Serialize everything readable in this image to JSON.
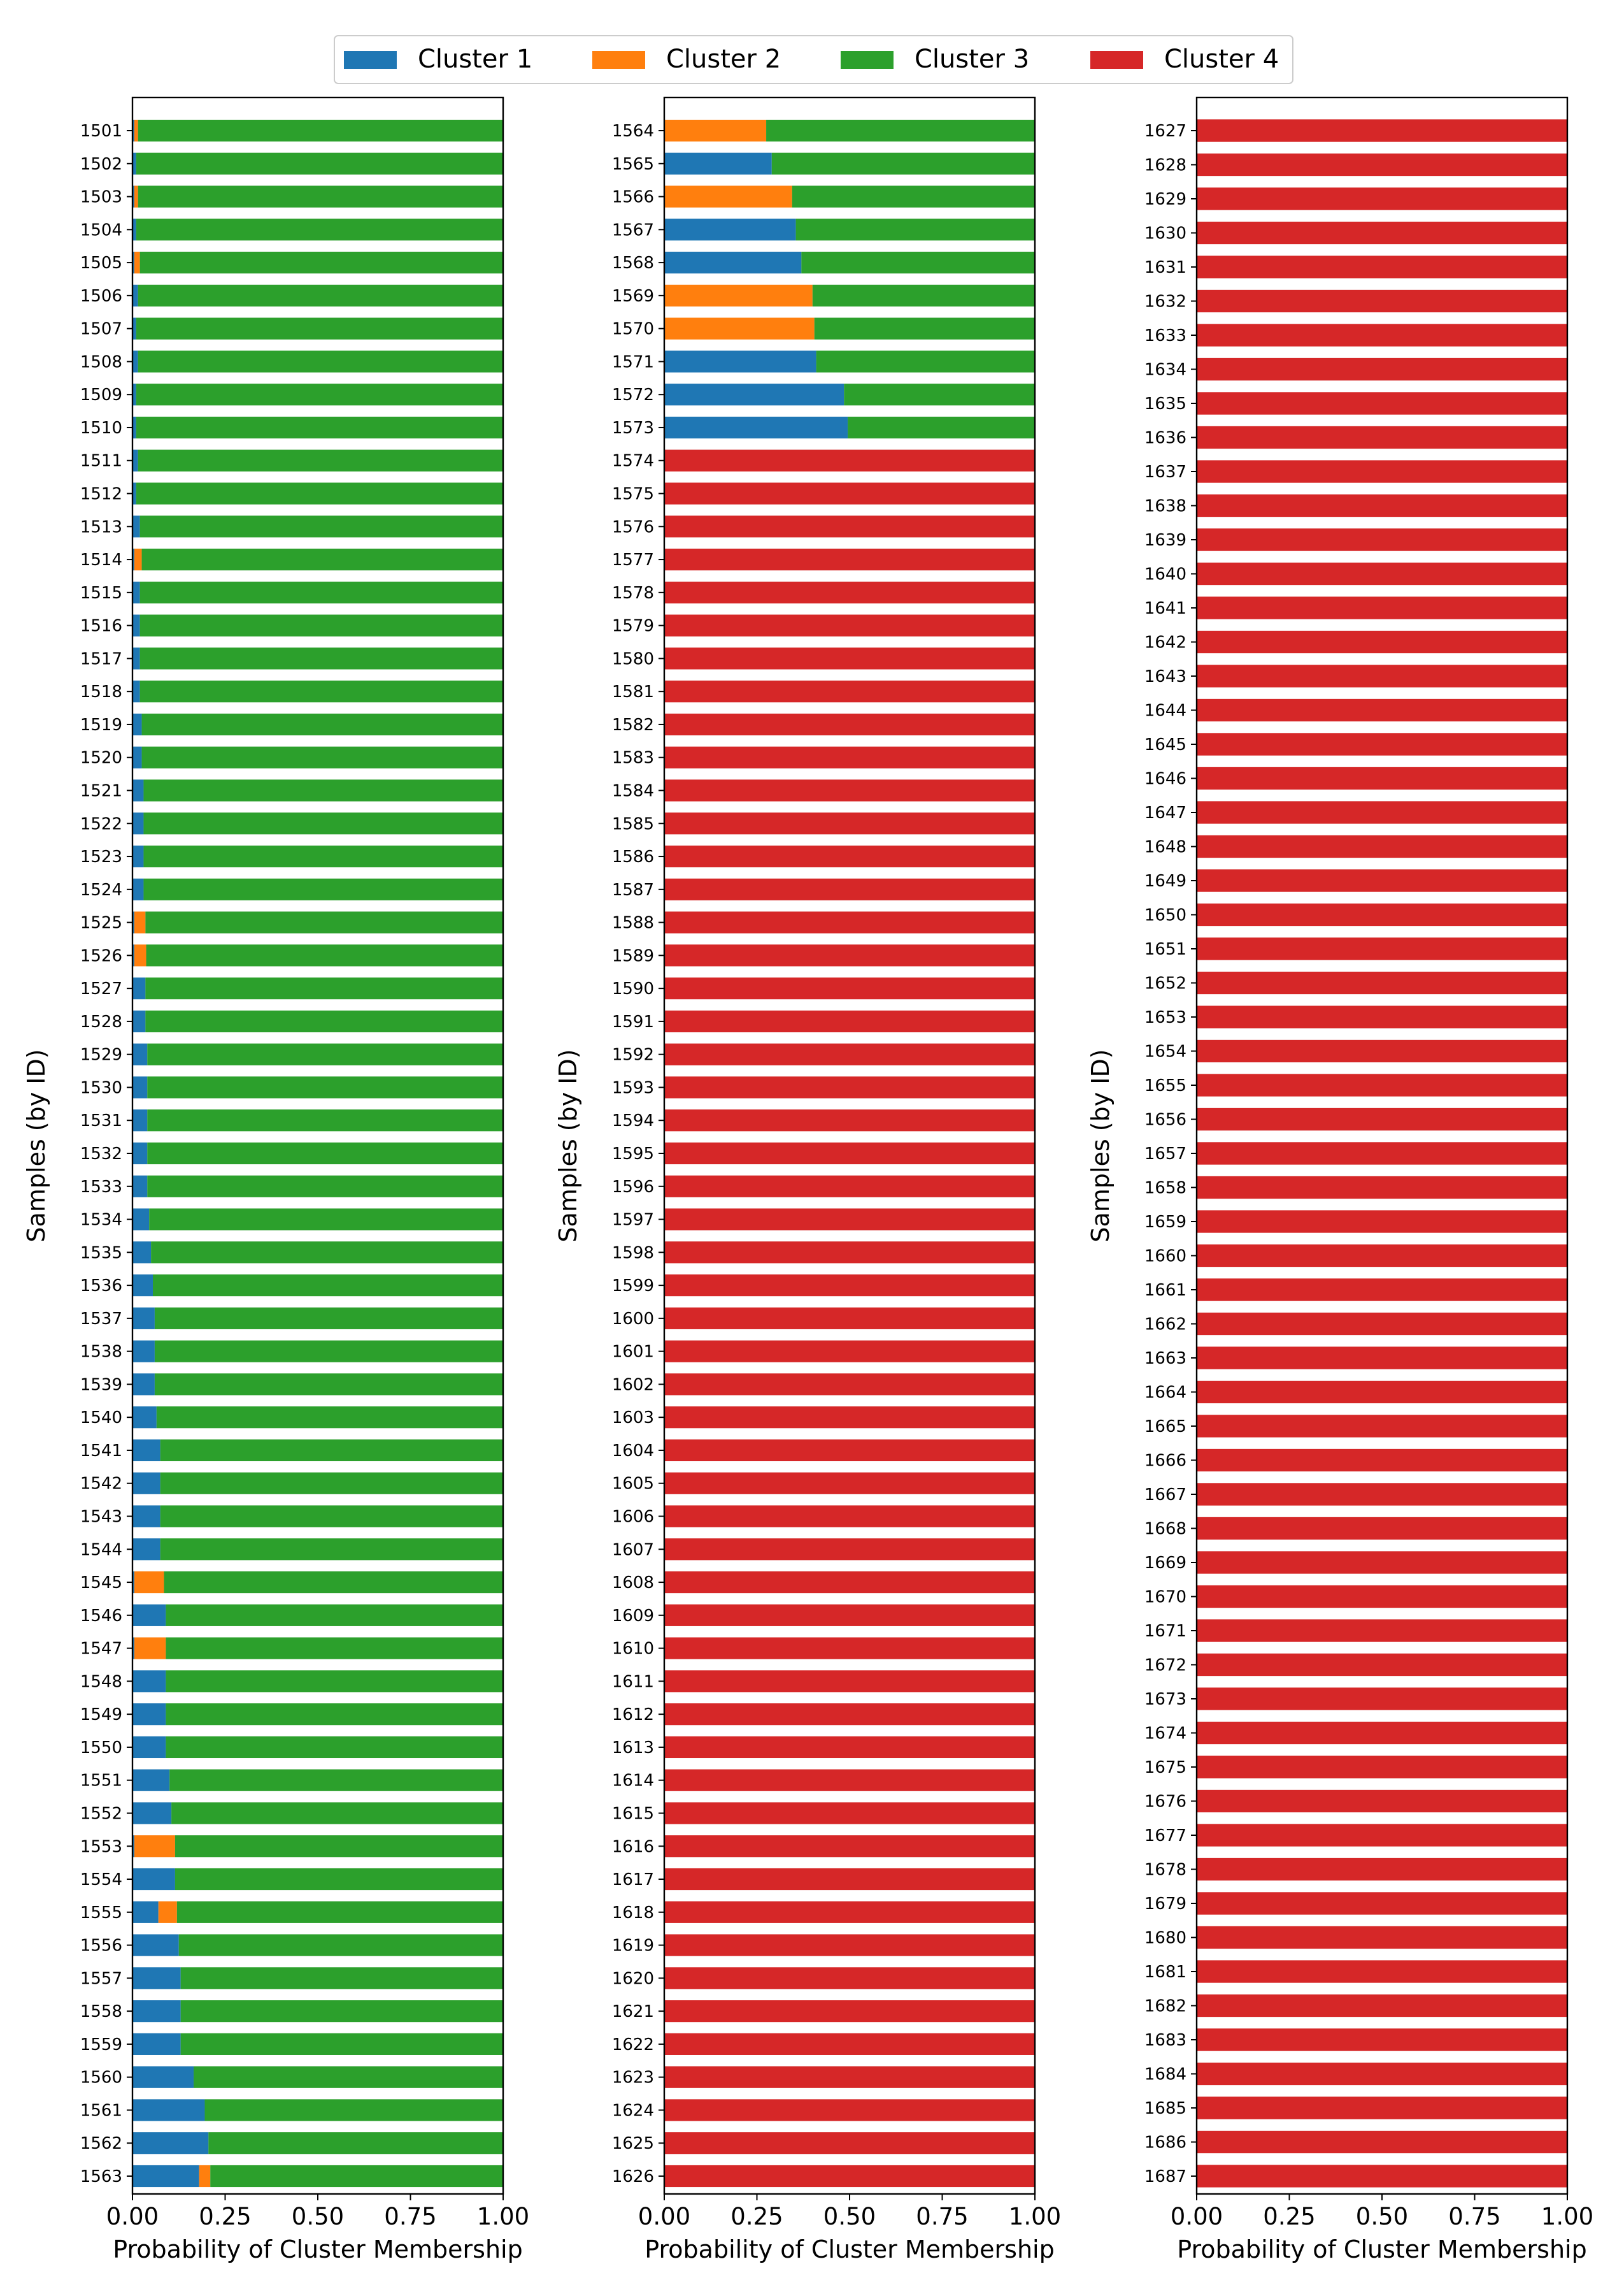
{
  "chart_data": {
    "type": "bar",
    "orientation": "horizontal",
    "stacked": true,
    "legend": {
      "placement": "top-center",
      "entries": [
        "Cluster 1",
        "Cluster 2",
        "Cluster 3",
        "Cluster 4"
      ]
    },
    "colors": {
      "Cluster 1": "#1f77b4",
      "Cluster 2": "#ff7f0e",
      "Cluster 3": "#2ca02c",
      "Cluster 4": "#d62728"
    },
    "xlabel": "Probability of Cluster Membership",
    "ylabel": "Samples (by ID)",
    "xlim": [
      0,
      1
    ],
    "xticks": [
      "0.00",
      "0.25",
      "0.50",
      "0.75",
      "1.00"
    ],
    "grid": false,
    "panels": [
      {
        "ids_first": 1501,
        "ids_last": 1563,
        "series": [
          {
            "name": "Cluster 1",
            "values": [
              0.005,
              0.01,
              0.005,
              0.01,
              0.005,
              0.015,
              0.01,
              0.015,
              0.01,
              0.01,
              0.015,
              0.01,
              0.02,
              0.005,
              0.02,
              0.02,
              0.02,
              0.02,
              0.025,
              0.025,
              0.03,
              0.03,
              0.03,
              0.03,
              0.005,
              0.005,
              0.035,
              0.035,
              0.04,
              0.04,
              0.04,
              0.04,
              0.04,
              0.045,
              0.05,
              0.055,
              0.06,
              0.06,
              0.06,
              0.065,
              0.075,
              0.075,
              0.075,
              0.075,
              0.005,
              0.09,
              0.005,
              0.09,
              0.09,
              0.09,
              0.1,
              0.105,
              0.005,
              0.115,
              0.07,
              0.125,
              0.13,
              0.13,
              0.13,
              0.165,
              0.195,
              0.205,
              0.18
            ]
          },
          {
            "name": "Cluster 2",
            "values": [
              0.01,
              0,
              0.01,
              0,
              0.015,
              0,
              0,
              0,
              0,
              0,
              0,
              0,
              0,
              0.02,
              0,
              0,
              0,
              0,
              0,
              0,
              0,
              0,
              0,
              0,
              0.03,
              0.032,
              0,
              0,
              0,
              0,
              0,
              0,
              0,
              0,
              0,
              0,
              0,
              0,
              0,
              0,
              0,
              0,
              0,
              0,
              0.08,
              0,
              0.085,
              0,
              0,
              0,
              0,
              0,
              0.11,
              0,
              0.05,
              0,
              0,
              0,
              0,
              0,
              0,
              0,
              0.03
            ]
          },
          {
            "name": "Cluster 3",
            "values": [
              0.985,
              0.99,
              0.985,
              0.99,
              0.98,
              0.985,
              0.99,
              0.985,
              0.99,
              0.99,
              0.985,
              0.99,
              0.98,
              0.975,
              0.98,
              0.98,
              0.98,
              0.98,
              0.975,
              0.975,
              0.97,
              0.97,
              0.97,
              0.97,
              0.965,
              0.963,
              0.965,
              0.965,
              0.96,
              0.96,
              0.96,
              0.96,
              0.96,
              0.955,
              0.95,
              0.945,
              0.94,
              0.94,
              0.94,
              0.935,
              0.925,
              0.925,
              0.925,
              0.925,
              0.915,
              0.91,
              0.91,
              0.91,
              0.91,
              0.91,
              0.9,
              0.895,
              0.885,
              0.885,
              0.88,
              0.875,
              0.87,
              0.87,
              0.87,
              0.835,
              0.805,
              0.795,
              0.79
            ]
          },
          {
            "name": "Cluster 4",
            "values": [
              0,
              0,
              0,
              0,
              0,
              0,
              0,
              0,
              0,
              0,
              0,
              0,
              0,
              0,
              0,
              0,
              0,
              0,
              0,
              0,
              0,
              0,
              0,
              0,
              0,
              0,
              0,
              0,
              0,
              0,
              0,
              0,
              0,
              0,
              0,
              0,
              0,
              0,
              0,
              0,
              0,
              0,
              0,
              0,
              0,
              0,
              0,
              0,
              0,
              0,
              0,
              0,
              0,
              0,
              0,
              0,
              0,
              0,
              0,
              0,
              0,
              0,
              0
            ]
          }
        ]
      },
      {
        "ids_first": 1564,
        "ids_last": 1626,
        "series": [
          {
            "name": "Cluster 1",
            "values": [
              0,
              0.29,
              0,
              0.355,
              0.37,
              0,
              0,
              0.41,
              0.485,
              0.495,
              0,
              0,
              0,
              0,
              0,
              0,
              0,
              0,
              0,
              0,
              0,
              0,
              0,
              0,
              0,
              0,
              0,
              0,
              0,
              0,
              0,
              0,
              0,
              0,
              0,
              0,
              0,
              0,
              0,
              0,
              0,
              0,
              0,
              0,
              0,
              0,
              0,
              0,
              0,
              0,
              0,
              0,
              0,
              0,
              0,
              0,
              0,
              0,
              0,
              0,
              0,
              0,
              0
            ]
          },
          {
            "name": "Cluster 2",
            "values": [
              0.275,
              0,
              0.345,
              0,
              0,
              0.4,
              0.405,
              0,
              0,
              0,
              0,
              0,
              0,
              0,
              0,
              0,
              0,
              0,
              0,
              0,
              0,
              0,
              0,
              0,
              0,
              0,
              0,
              0,
              0,
              0,
              0,
              0,
              0,
              0,
              0,
              0,
              0,
              0,
              0,
              0,
              0,
              0,
              0,
              0,
              0,
              0,
              0,
              0,
              0,
              0,
              0,
              0,
              0,
              0,
              0,
              0,
              0,
              0,
              0,
              0,
              0,
              0,
              0
            ]
          },
          {
            "name": "Cluster 3",
            "values": [
              0.725,
              0.71,
              0.655,
              0.645,
              0.63,
              0.6,
              0.595,
              0.59,
              0.515,
              0.505,
              0,
              0,
              0,
              0,
              0,
              0,
              0,
              0,
              0,
              0,
              0,
              0,
              0,
              0,
              0,
              0,
              0,
              0,
              0,
              0,
              0,
              0,
              0,
              0,
              0,
              0,
              0,
              0,
              0,
              0,
              0,
              0,
              0,
              0,
              0,
              0,
              0,
              0,
              0,
              0,
              0,
              0,
              0,
              0,
              0,
              0,
              0,
              0,
              0,
              0,
              0,
              0,
              0
            ]
          },
          {
            "name": "Cluster 4",
            "values": [
              0,
              0,
              0,
              0,
              0,
              0,
              0,
              0,
              0,
              0,
              1,
              1,
              1,
              1,
              1,
              1,
              1,
              1,
              1,
              1,
              1,
              1,
              1,
              1,
              1,
              1,
              1,
              1,
              1,
              1,
              1,
              1,
              1,
              1,
              1,
              1,
              1,
              1,
              1,
              1,
              1,
              1,
              1,
              1,
              1,
              1,
              1,
              1,
              1,
              1,
              1,
              1,
              1,
              1,
              1,
              1,
              1,
              1,
              1,
              1,
              1,
              1,
              1
            ]
          }
        ]
      },
      {
        "ids_first": 1627,
        "ids_last": 1687,
        "series": [
          {
            "name": "Cluster 1",
            "values": [
              0,
              0,
              0,
              0,
              0,
              0,
              0,
              0,
              0,
              0,
              0,
              0,
              0,
              0,
              0,
              0,
              0,
              0,
              0,
              0,
              0,
              0,
              0,
              0,
              0,
              0,
              0,
              0,
              0,
              0,
              0,
              0,
              0,
              0,
              0,
              0,
              0,
              0,
              0,
              0,
              0,
              0,
              0,
              0,
              0,
              0,
              0,
              0,
              0,
              0,
              0,
              0,
              0,
              0,
              0,
              0,
              0,
              0,
              0,
              0,
              0
            ]
          },
          {
            "name": "Cluster 2",
            "values": [
              0,
              0,
              0,
              0,
              0,
              0,
              0,
              0,
              0,
              0,
              0,
              0,
              0,
              0,
              0,
              0,
              0,
              0,
              0,
              0,
              0,
              0,
              0,
              0,
              0,
              0,
              0,
              0,
              0,
              0,
              0,
              0,
              0,
              0,
              0,
              0,
              0,
              0,
              0,
              0,
              0,
              0,
              0,
              0,
              0,
              0,
              0,
              0,
              0,
              0,
              0,
              0,
              0,
              0,
              0,
              0,
              0,
              0,
              0,
              0,
              0
            ]
          },
          {
            "name": "Cluster 3",
            "values": [
              0,
              0,
              0,
              0,
              0,
              0,
              0,
              0,
              0,
              0,
              0,
              0,
              0,
              0,
              0,
              0,
              0,
              0,
              0,
              0,
              0,
              0,
              0,
              0,
              0,
              0,
              0,
              0,
              0,
              0,
              0,
              0,
              0,
              0,
              0,
              0,
              0,
              0,
              0,
              0,
              0,
              0,
              0,
              0,
              0,
              0,
              0,
              0,
              0,
              0,
              0,
              0,
              0,
              0,
              0,
              0,
              0,
              0,
              0,
              0,
              0
            ]
          },
          {
            "name": "Cluster 4",
            "values": [
              1,
              1,
              1,
              1,
              1,
              1,
              1,
              1,
              1,
              1,
              1,
              1,
              1,
              1,
              1,
              1,
              1,
              1,
              1,
              1,
              1,
              1,
              1,
              1,
              1,
              1,
              1,
              1,
              1,
              1,
              1,
              1,
              1,
              1,
              1,
              1,
              1,
              1,
              1,
              1,
              1,
              1,
              1,
              1,
              1,
              1,
              1,
              1,
              1,
              1,
              1,
              1,
              1,
              1,
              1,
              1,
              1,
              1,
              1,
              1,
              1
            ]
          }
        ]
      }
    ]
  }
}
